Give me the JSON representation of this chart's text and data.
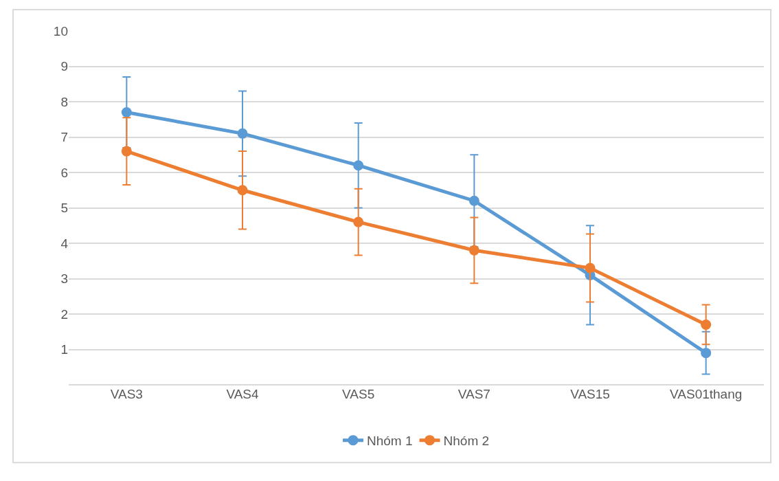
{
  "chart_data": {
    "type": "line",
    "categories": [
      "VAS3",
      "VAS4",
      "VAS5",
      "VAS7",
      "VAS15",
      "VAS01thang"
    ],
    "series": [
      {
        "name": "Nhóm 1",
        "color": "#5b9bd5",
        "values": [
          7.7,
          7.1,
          6.2,
          5.2,
          3.1,
          0.9
        ],
        "errors": [
          1.0,
          1.2,
          1.2,
          1.3,
          1.4,
          0.6
        ]
      },
      {
        "name": "Nhóm 2",
        "color": "#ed7d31",
        "values": [
          6.6,
          5.5,
          4.6,
          3.8,
          3.3,
          1.7
        ],
        "errors": [
          0.95,
          1.1,
          0.94,
          0.93,
          0.96,
          0.56
        ]
      }
    ],
    "ylim": [
      0,
      10
    ],
    "yticks": [
      {
        "value": 0,
        "label": null
      },
      1,
      2,
      3,
      4,
      5,
      6,
      7,
      8,
      9,
      10
    ],
    "grid": "y",
    "legend": "bottom",
    "marker": "circle",
    "line_style": "solid"
  }
}
